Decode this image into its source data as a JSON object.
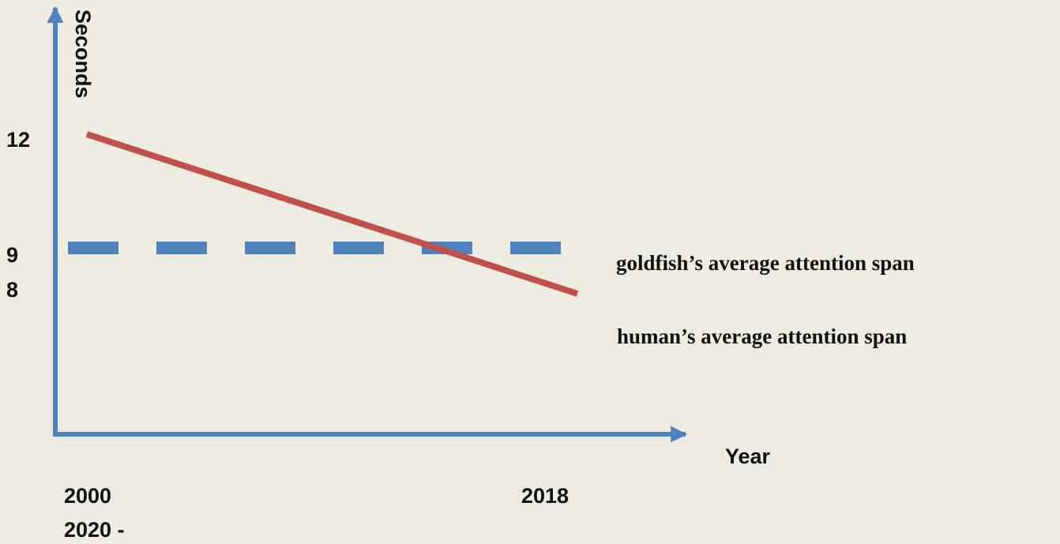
{
  "chart_data": {
    "type": "line",
    "title": "",
    "xlabel": "Year",
    "ylabel": "Seconds",
    "x_ticks": [
      "2000",
      "2018",
      "2020 -"
    ],
    "y_ticks": [
      "12",
      "9",
      "8"
    ],
    "grid": false,
    "series": [
      {
        "name": "human’s average attention span",
        "style": "solid",
        "color": "#c0504d",
        "points": [
          {
            "x": "2000",
            "y": 12
          },
          {
            "x": "2018",
            "y": 8
          }
        ]
      },
      {
        "name": "goldfish’s average attention span",
        "style": "dashed",
        "color": "#4f81bd",
        "points": [
          {
            "x": "2000",
            "y": 9
          },
          {
            "x": "2018",
            "y": 9
          }
        ]
      }
    ],
    "axis_color": "#4f81bd"
  }
}
